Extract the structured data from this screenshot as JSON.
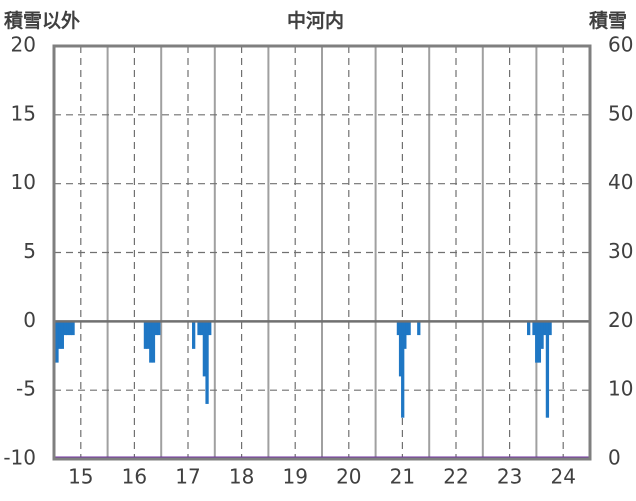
{
  "chart_data": {
    "type": "bar",
    "title": "中河内",
    "ylabel_left": "積雪以外",
    "ylabel_right": "積雪",
    "ylim_left": [
      -10,
      20
    ],
    "ylim_right": [
      0,
      60
    ],
    "yticks_left": [
      "20",
      "15",
      "10",
      "5",
      "0",
      "-5",
      "-10"
    ],
    "yticks_right": [
      "60",
      "50",
      "40",
      "30",
      "20",
      "10",
      "0"
    ],
    "xlim": [
      14.5,
      24.5
    ],
    "xticks": [
      "15",
      "16",
      "17",
      "18",
      "19",
      "20",
      "21",
      "22",
      "23",
      "24"
    ],
    "grid": true,
    "series": [
      {
        "color": "#1f77c4",
        "x": [
          14.55,
          14.6,
          14.65,
          14.7,
          14.75,
          14.8,
          14.85,
          16.2,
          16.25,
          16.3,
          16.35,
          16.4,
          16.45,
          17.1,
          17.2,
          17.25,
          17.3,
          17.35,
          17.4,
          20.92,
          20.96,
          21.0,
          21.04,
          21.08,
          21.12,
          21.3,
          23.35,
          23.45,
          23.5,
          23.55,
          23.6,
          23.65,
          23.7,
          23.75
        ],
        "values": [
          -3,
          -2,
          -2,
          -1,
          -1,
          -1,
          -1,
          -2,
          -2,
          -3,
          -3,
          -1,
          -1,
          -2,
          -1,
          -1,
          -4,
          -6,
          -1,
          -1,
          -4,
          -7,
          -2,
          -1,
          -1,
          -1,
          -1,
          -1,
          -3,
          -3,
          -2,
          -1,
          -7,
          -1
        ]
      },
      {
        "color": "#7030a0",
        "x": [
          14.5,
          24.5
        ],
        "values": [
          0,
          0
        ],
        "axis": "right"
      }
    ]
  }
}
